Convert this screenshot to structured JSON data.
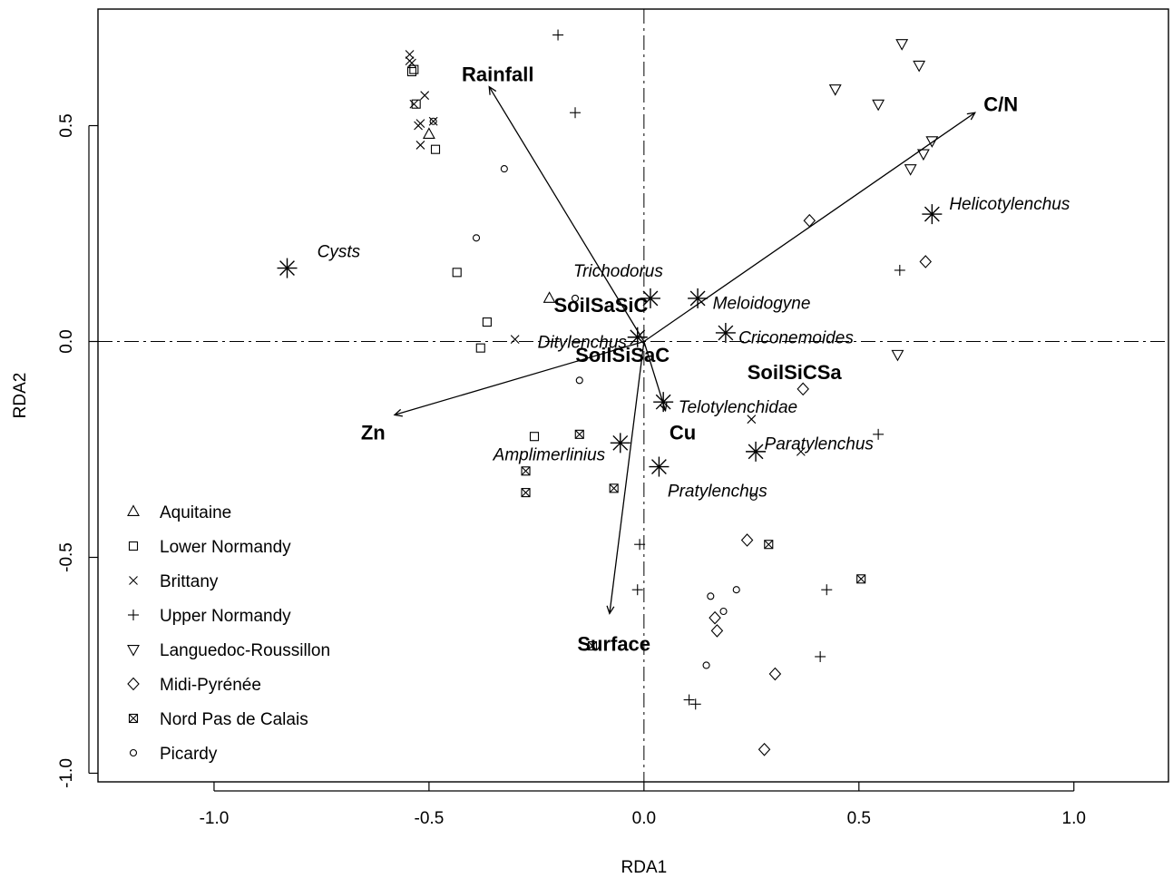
{
  "chart_data": {
    "type": "scatter",
    "xlabel": "RDA1",
    "ylabel": "RDA2",
    "xlim": [
      -1.27,
      1.22
    ],
    "ylim": [
      -1.02,
      0.77
    ],
    "xticks": [
      {
        "value": -1.0,
        "label": "-1.0"
      },
      {
        "value": -0.5,
        "label": "-0.5"
      },
      {
        "value": 0.0,
        "label": "0.0"
      },
      {
        "value": 0.5,
        "label": "0.5"
      },
      {
        "value": 1.0,
        "label": "1.0"
      }
    ],
    "yticks": [
      {
        "value": -1.0,
        "label": "-1.0"
      },
      {
        "value": -0.5,
        "label": "-0.5"
      },
      {
        "value": 0.0,
        "label": "0.0"
      },
      {
        "value": 0.5,
        "label": "0.5"
      }
    ],
    "reference_lines": {
      "x": 0,
      "y": 0,
      "style": "dash-dot"
    },
    "legend_position": "bottom-left",
    "env_arrows": [
      {
        "name": "Rainfall",
        "x": -0.36,
        "y": 0.59,
        "lx": -0.34,
        "ly": 0.62
      },
      {
        "name": "C/N",
        "x": 0.77,
        "y": 0.53,
        "lx": 0.83,
        "ly": 0.55
      },
      {
        "name": "Zn",
        "x": -0.58,
        "y": -0.17,
        "lx": -0.63,
        "ly": -0.21
      },
      {
        "name": "Cu",
        "x": 0.05,
        "y": -0.16,
        "lx": 0.09,
        "ly": -0.21
      },
      {
        "name": "Surface",
        "x": -0.08,
        "y": -0.63,
        "lx": -0.07,
        "ly": -0.7
      }
    ],
    "soil_labels": [
      {
        "name": "SoilSaSiC",
        "x": -0.1,
        "y": 0.085
      },
      {
        "name": "SoilSiSaC",
        "x": -0.05,
        "y": -0.03
      },
      {
        "name": "SoilSiCSa",
        "x": 0.35,
        "y": -0.07
      }
    ],
    "species": [
      {
        "name": "Cysts",
        "x": -0.83,
        "y": 0.17,
        "lx": -0.76,
        "ly": 0.21,
        "anchor": "start"
      },
      {
        "name": "Helicotylenchus",
        "x": 0.67,
        "y": 0.295,
        "lx": 0.71,
        "ly": 0.32,
        "anchor": "start"
      },
      {
        "name": "Trichodorus",
        "x": 0.015,
        "y": 0.1,
        "lx": -0.06,
        "ly": 0.165,
        "anchor": "middle"
      },
      {
        "name": "Meloidogyne",
        "x": 0.125,
        "y": 0.1,
        "lx": 0.16,
        "ly": 0.09,
        "anchor": "start"
      },
      {
        "name": "Ditylenchus",
        "x": -0.015,
        "y": 0.01,
        "lx": -0.04,
        "ly": 0.0,
        "anchor": "end"
      },
      {
        "name": "Criconemoides",
        "x": 0.19,
        "y": 0.02,
        "lx": 0.22,
        "ly": 0.01,
        "anchor": "start"
      },
      {
        "name": "Telotylenchidae",
        "x": 0.045,
        "y": -0.14,
        "lx": 0.08,
        "ly": -0.15,
        "anchor": "start"
      },
      {
        "name": "Amplimerlinius",
        "x": -0.055,
        "y": -0.235,
        "lx": -0.09,
        "ly": -0.26,
        "anchor": "end"
      },
      {
        "name": "Paratylenchus",
        "x": 0.26,
        "y": -0.255,
        "lx": 0.28,
        "ly": -0.235,
        "anchor": "start"
      },
      {
        "name": "Pratylenchus",
        "x": 0.035,
        "y": -0.29,
        "lx": 0.055,
        "ly": -0.345,
        "anchor": "start"
      }
    ],
    "series": [
      {
        "name": "Aquitaine",
        "symbol": "triangle-up",
        "points": [
          [
            -0.5,
            0.48
          ],
          [
            -0.22,
            0.1
          ]
        ]
      },
      {
        "name": "Lower Normandy",
        "symbol": "square",
        "points": [
          [
            -0.54,
            0.625
          ],
          [
            -0.535,
            0.63
          ],
          [
            -0.53,
            0.55
          ],
          [
            -0.485,
            0.445
          ],
          [
            -0.435,
            0.16
          ],
          [
            -0.365,
            0.045
          ],
          [
            -0.38,
            -0.015
          ],
          [
            -0.255,
            -0.22
          ]
        ]
      },
      {
        "name": "Brittany",
        "symbol": "x",
        "points": [
          [
            -0.545,
            0.665
          ],
          [
            -0.545,
            0.65
          ],
          [
            -0.54,
            0.645
          ],
          [
            -0.535,
            0.55
          ],
          [
            -0.51,
            0.57
          ],
          [
            -0.525,
            0.5
          ],
          [
            -0.52,
            0.505
          ],
          [
            -0.49,
            0.51
          ],
          [
            -0.52,
            0.455
          ],
          [
            -0.3,
            0.005
          ],
          [
            0.25,
            -0.18
          ],
          [
            0.365,
            -0.255
          ]
        ]
      },
      {
        "name": "Upper Normandy",
        "symbol": "plus",
        "points": [
          [
            -0.2,
            0.71
          ],
          [
            -0.16,
            0.53
          ],
          [
            0.595,
            0.165
          ],
          [
            0.545,
            -0.215
          ],
          [
            -0.01,
            -0.47
          ],
          [
            -0.015,
            -0.575
          ],
          [
            0.425,
            -0.575
          ],
          [
            0.41,
            -0.73
          ],
          [
            0.105,
            -0.83
          ],
          [
            0.12,
            -0.84
          ]
        ]
      },
      {
        "name": "Languedoc-Roussillon",
        "symbol": "triangle-down",
        "points": [
          [
            0.6,
            0.69
          ],
          [
            0.64,
            0.64
          ],
          [
            0.445,
            0.585
          ],
          [
            0.545,
            0.55
          ],
          [
            0.67,
            0.465
          ],
          [
            0.65,
            0.435
          ],
          [
            0.62,
            0.4
          ],
          [
            0.59,
            -0.03
          ]
        ]
      },
      {
        "name": "Midi-Pyrénée",
        "symbol": "diamond",
        "points": [
          [
            0.385,
            0.28
          ],
          [
            0.655,
            0.185
          ],
          [
            0.37,
            -0.11
          ],
          [
            0.24,
            -0.46
          ],
          [
            0.165,
            -0.64
          ],
          [
            0.17,
            -0.67
          ],
          [
            0.305,
            -0.77
          ],
          [
            0.28,
            -0.945
          ]
        ]
      },
      {
        "name": "Nord Pas de Calais",
        "symbol": "boxed-x",
        "points": [
          [
            -0.15,
            -0.215
          ],
          [
            -0.275,
            -0.3
          ],
          [
            -0.275,
            -0.35
          ],
          [
            -0.07,
            -0.34
          ],
          [
            0.29,
            -0.47
          ],
          [
            0.505,
            -0.55
          ],
          [
            -0.12,
            -0.705
          ]
        ]
      },
      {
        "name": "Picardy",
        "symbol": "circle",
        "points": [
          [
            -0.49,
            0.51
          ],
          [
            -0.325,
            0.4
          ],
          [
            -0.39,
            0.24
          ],
          [
            -0.16,
            0.1
          ],
          [
            -0.15,
            -0.09
          ],
          [
            0.255,
            -0.36
          ],
          [
            0.215,
            -0.575
          ],
          [
            0.155,
            -0.59
          ],
          [
            0.185,
            -0.625
          ],
          [
            0.145,
            -0.75
          ]
        ]
      }
    ]
  }
}
